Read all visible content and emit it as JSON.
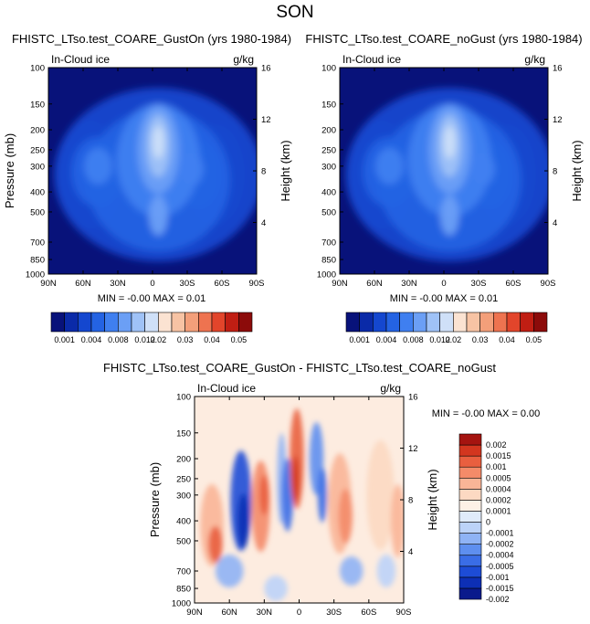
{
  "suptitle": "SON",
  "colors": {
    "abs_scale": [
      "#08127a",
      "#0a2aa8",
      "#1447cf",
      "#2463e3",
      "#3f7ff0",
      "#6b9ff5",
      "#9fc2f7",
      "#cfe0f8",
      "#fbe3d2",
      "#f7c3a4",
      "#f39f7a",
      "#ee7350",
      "#e2452b",
      "#c01e13",
      "#8c0b0a"
    ],
    "diff_scale": [
      "#0a1a8c",
      "#0d2fb5",
      "#1d4cd6",
      "#3a6de6",
      "#5e8fef",
      "#8fb3f5",
      "#bcd3f8",
      "#e0ebfa",
      "#fdf1e6",
      "#fcd9c2",
      "#f9b597",
      "#f48b69",
      "#e95f3f",
      "#d3361f",
      "#a51410"
    ],
    "ocean": "#08127a",
    "diff_bg": "#fdece0"
  },
  "chart_data": [
    {
      "type": "contour",
      "title": "FHISTC_LTso.test_COARE_GustOn (yrs 1980-1984)",
      "left_label": "In-Cloud ice",
      "units": "g/kg",
      "ylabel": "Pressure (mb)",
      "ylabel_right": "Height (km)",
      "xticks": [
        "90N",
        "60N",
        "30N",
        "0",
        "30S",
        "60S",
        "90S"
      ],
      "yticks": [
        "100",
        "150",
        "200",
        "250",
        "300",
        "400",
        "500",
        "700",
        "850",
        "1000"
      ],
      "height_ticks": [
        "16",
        "12",
        "8",
        "4"
      ],
      "minmax": "MIN =  -0.00   MAX =  0.01",
      "levels": [
        "0.001",
        "0.004",
        "0.008",
        "0.012",
        "0.02",
        "0.03",
        "0.04",
        "0.05"
      ],
      "max_value": 0.01
    },
    {
      "type": "contour",
      "title": "FHISTC_LTso.test_COARE_noGust (yrs 1980-1984)",
      "left_label": "In-Cloud ice",
      "units": "g/kg",
      "ylabel": "",
      "ylabel_right": "Height (km)",
      "xticks": [
        "90N",
        "60N",
        "30N",
        "0",
        "30S",
        "60S",
        "90S"
      ],
      "yticks": [
        "100",
        "150",
        "200",
        "250",
        "300",
        "400",
        "500",
        "700",
        "850",
        "1000"
      ],
      "height_ticks": [
        "16",
        "12",
        "8",
        "4"
      ],
      "minmax": "MIN =  -0.00   MAX =  0.01",
      "levels": [
        "0.001",
        "0.004",
        "0.008",
        "0.012",
        "0.02",
        "0.03",
        "0.04",
        "0.05"
      ],
      "max_value": 0.01
    },
    {
      "type": "contour",
      "title": "FHISTC_LTso.test_COARE_GustOn - FHISTC_LTso.test_COARE_noGust",
      "left_label": "In-Cloud ice",
      "units": "g/kg",
      "ylabel": "Pressure (mb)",
      "ylabel_right": "Height (km)",
      "xticks": [
        "90N",
        "60N",
        "30N",
        "0",
        "30S",
        "60S",
        "90S"
      ],
      "yticks": [
        "100",
        "150",
        "200",
        "250",
        "300",
        "400",
        "500",
        "700",
        "850",
        "1000"
      ],
      "height_ticks": [
        "16",
        "12",
        "8",
        "4"
      ],
      "minmax": "MIN =  -0.00   MAX =  0.00",
      "levels": [
        "0.002",
        "0.0015",
        "0.001",
        "0.0005",
        "0.0004",
        "0.0002",
        "0.0001",
        "0",
        "-0.0001",
        "-0.0002",
        "-0.0004",
        "-0.0005",
        "-0.001",
        "-0.0015",
        "-0.002"
      ]
    }
  ]
}
